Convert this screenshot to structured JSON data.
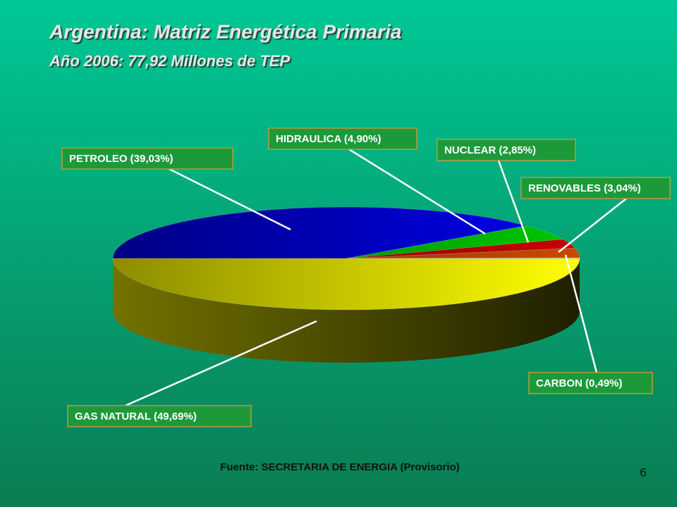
{
  "chart_data": {
    "type": "pie",
    "title": "Argentina: Matriz Energética Primaria",
    "subtitle": "Año 2006: 77,92 Millones de TEP",
    "categories": [
      "PETROLEO (39,03%)",
      "HIDRAULICA (4,90%)",
      "NUCLEAR (2,85%)",
      "RENOVABLES (3,04%)",
      "CARBON (0,49%)",
      "GAS NATURAL (49,69%)"
    ],
    "values": [
      39.03,
      4.9,
      2.85,
      3.04,
      0.49,
      49.69
    ],
    "colors": [
      "#0000ee",
      "#00c800",
      "#c80000",
      "#c84a00",
      "#d8d860",
      "#ffff00"
    ],
    "source": "Fuente: SECRETARIA DE ENERGIA (Provisorio)",
    "page_number": "6"
  }
}
